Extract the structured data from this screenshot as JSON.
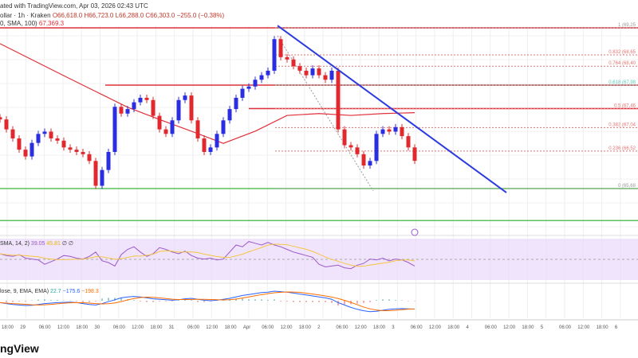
{
  "header": {
    "published": "ated with TradingView.com, Apr 03, 2026 02:43 UTC",
    "symbol": "ollar · 1h · Kraken",
    "o": "O66,618.0",
    "h": "H66,723.0",
    "l": "L66,288.0",
    "c": "C66,303.0",
    "chg": "−255.0 (−0.38%)",
    "sma_label": "0, SMA, 100)",
    "sma_value": "67,369.3"
  },
  "rsi": {
    "label": "SMA, 14, 2)",
    "v1": "39.05",
    "v2": "45.81",
    "v3": "∅ ∅"
  },
  "macd": {
    "label": "lose, 9, EMA, EMA)",
    "v1": "22.7",
    "v2": "−175.6",
    "v3": "−198.3"
  },
  "footer": {
    "logo": "ngView"
  },
  "colors": {
    "up": "#2a2ee0",
    "down": "#e0282e",
    "sma": "#e0303a",
    "trend": "#2b3be0",
    "support": "#5cc05c",
    "rsi_bg": "#ead9fb",
    "rsi": "#9b59c8"
  },
  "chart_data": {
    "type": "candlestick",
    "interval": "1h",
    "x_ticks": [
      "18:00",
      "29",
      "06:00",
      "12:00",
      "18:00",
      "30",
      "06:00",
      "12:00",
      "18:00",
      "31",
      "06:00",
      "12:00",
      "18:00",
      "Apr",
      "06:00",
      "12:00",
      "18:00",
      "2",
      "06:00",
      "12:00",
      "18:00",
      "3",
      "06:00",
      "12:00",
      "18:00",
      "4",
      "06:00",
      "12:00",
      "18:00",
      "5",
      "06:00",
      "12:00",
      "18:00",
      "6"
    ],
    "closes": [
      67220,
      67000,
      66800,
      66550,
      66400,
      66700,
      66900,
      66950,
      66800,
      66750,
      66600,
      66550,
      66500,
      66450,
      66300,
      65750,
      66100,
      66500,
      67500,
      67350,
      67450,
      67600,
      67700,
      67650,
      67300,
      67000,
      66900,
      67200,
      67650,
      67750,
      67200,
      66800,
      66500,
      66600,
      66900,
      67200,
      67450,
      67700,
      67900,
      67950,
      68100,
      68200,
      68300,
      69000,
      68600,
      68550,
      68400,
      68300,
      68200,
      68350,
      68200,
      68100,
      68300,
      67000,
      66650,
      66600,
      66450,
      66200,
      66300,
      66900,
      67000,
      66950,
      67050,
      66850,
      66600,
      66303
    ],
    "sma100": [
      68900,
      68545,
      68190,
      67840,
      67490,
      67220,
      66960,
      66690,
      66960,
      67310,
      67350,
      67310,
      67350,
      67370
    ],
    "fib_levels": [
      {
        "ratio": "1",
        "label": "1 (69,25",
        "price": 69250
      },
      {
        "ratio": "0.832",
        "label": "0.832 (68,65",
        "price": 68650
      },
      {
        "ratio": "0.764",
        "label": "0.764 (68,40",
        "price": 68400
      },
      {
        "ratio": "0.618",
        "label": "0.618 (67,98",
        "price": 67980
      },
      {
        "ratio": "0.5",
        "label": "0.5 (67,46",
        "price": 67460
      },
      {
        "ratio": "0.382",
        "label": "0.382 (67,04",
        "price": 67040
      },
      {
        "ratio": "0.236",
        "label": "0.236 (66,52",
        "price": 66520
      },
      {
        "ratio": "0",
        "label": "0 (65,68",
        "price": 65688
      }
    ],
    "resistance": [
      69250,
      67980,
      67460
    ],
    "support": [
      65688,
      64980
    ],
    "trendline": [
      69300,
      65600
    ],
    "rsi": [
      50,
      48,
      47,
      49,
      45,
      44,
      43,
      38,
      41,
      44,
      48,
      47,
      45,
      44,
      47,
      52,
      42,
      40,
      36,
      49,
      55,
      58,
      52,
      47,
      50,
      57,
      55,
      52,
      50,
      53,
      48,
      45,
      44,
      45,
      43,
      44,
      52,
      60,
      58,
      64,
      62,
      60,
      63,
      60,
      58,
      55,
      52,
      50,
      48,
      46,
      38,
      35,
      36,
      37,
      34,
      33,
      37,
      39,
      44,
      43,
      45,
      42,
      44,
      43,
      40,
      36
    ],
    "macd": [
      -40,
      -60,
      -80,
      -90,
      -100,
      -95,
      -80,
      -60,
      -50,
      -40,
      -35,
      -30,
      -40,
      -60,
      -80,
      -90,
      -60,
      -20,
      20,
      60,
      80,
      90,
      80,
      60,
      40,
      30,
      20,
      10,
      20,
      40,
      50,
      30,
      10,
      0,
      10,
      30,
      50,
      80,
      110,
      130,
      150,
      170,
      180,
      200,
      190,
      180,
      160,
      140,
      120,
      100,
      80,
      60,
      30,
      -40,
      -90,
      -140,
      -180,
      -210,
      -230,
      -220,
      -200,
      -180,
      -170,
      -165,
      -170,
      -175
    ]
  }
}
